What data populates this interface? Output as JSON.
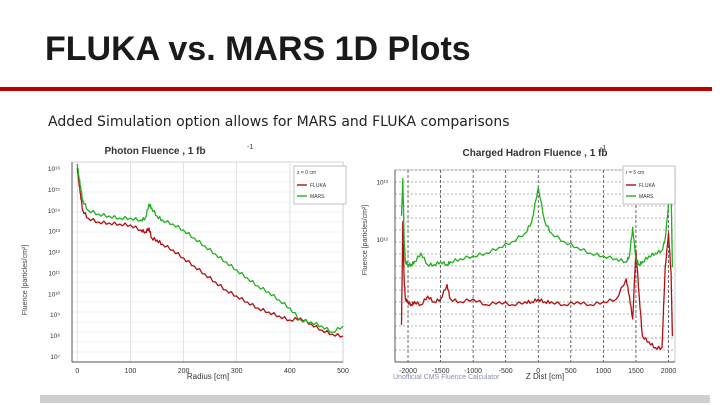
{
  "slide": {
    "title": "FLUKA vs. MARS 1D Plots",
    "subtitle": "Added Simulation option allows for MARS and FLUKA comparisons",
    "accent_color": "#c00000"
  },
  "chart_data": [
    {
      "type": "line",
      "title": "Photon Fluence , 1 fb",
      "title_superscript": "-1",
      "xlabel": "Radius [cm]",
      "ylabel": "Fluence [particles/cm²]",
      "xlim": [
        -10,
        500
      ],
      "ylog": true,
      "ylim_exp": [
        6,
        16
      ],
      "x_ticks": [
        "0",
        "100",
        "200",
        "300",
        "400",
        "500"
      ],
      "y_ticks": [
        "10¹⁶",
        "10¹⁵",
        "10¹⁴",
        "10¹³",
        "10¹²",
        "10¹¹",
        "10¹⁰",
        "10⁹",
        "10⁸",
        "10⁷"
      ],
      "grid": true,
      "legend_position": "top-right",
      "legend_header": "z = 0 cm",
      "series": [
        {
          "name": "FLUKA",
          "color": "#b01010",
          "x": [
            0,
            3,
            6,
            10,
            20,
            40,
            60,
            80,
            100,
            120,
            128,
            135,
            140,
            150,
            160,
            180,
            200,
            220,
            240,
            260,
            280,
            300,
            320,
            340,
            360,
            380,
            400,
            420,
            440,
            460,
            480,
            500
          ],
          "y": [
            15.7,
            15.0,
            14.4,
            13.6,
            13.2,
            13.0,
            12.95,
            12.9,
            12.85,
            12.6,
            12.5,
            12.7,
            12.2,
            12.1,
            11.9,
            11.6,
            11.2,
            10.8,
            10.4,
            10.0,
            9.6,
            9.3,
            9.0,
            8.7,
            8.5,
            8.3,
            8.1,
            8.2,
            7.9,
            7.6,
            7.4,
            7.3
          ]
        },
        {
          "name": "MARS",
          "color": "#20b020",
          "x": [
            0,
            3,
            6,
            10,
            20,
            40,
            60,
            80,
            100,
            120,
            128,
            135,
            140,
            150,
            160,
            180,
            200,
            220,
            240,
            260,
            280,
            300,
            320,
            340,
            360,
            380,
            400,
            420,
            440,
            460,
            480,
            500
          ],
          "y": [
            15.9,
            15.3,
            14.8,
            14.1,
            13.6,
            13.4,
            13.3,
            13.2,
            13.2,
            13.1,
            13.2,
            13.9,
            13.7,
            13.3,
            13.1,
            12.9,
            12.6,
            12.2,
            11.8,
            11.4,
            11.0,
            10.6,
            10.2,
            9.8,
            9.5,
            9.1,
            8.7,
            8.1,
            8.0,
            7.8,
            7.5,
            7.8
          ]
        }
      ]
    },
    {
      "type": "line",
      "title": "Charged Hadron Fluence , 1 fb",
      "title_superscript": "-1",
      "xlabel": "Z Dist [cm]",
      "ylabel": "Fluence [particles/cm²]",
      "xlim": [
        -2200,
        2100
      ],
      "ylog": true,
      "ylim_exp": [
        9.85,
        13.2
      ],
      "x_ticks": [
        "-2000",
        "-1500",
        "-1000",
        "-500",
        "0",
        "500",
        "1000",
        "1500",
        "2000"
      ],
      "y_ticks": [
        "10¹³",
        "10¹²"
      ],
      "grid": true,
      "legend_position": "top-right",
      "legend_header": "r = 5 cm",
      "series": [
        {
          "name": "FLUKA",
          "color": "#b01010",
          "x": [
            -2100,
            -2080,
            -2060,
            -2040,
            -2000,
            -1950,
            -1900,
            -1800,
            -1700,
            -1600,
            -1500,
            -1400,
            -1350,
            -1200,
            -1000,
            -800,
            -600,
            -400,
            -200,
            -100,
            0,
            100,
            200,
            400,
            600,
            800,
            1000,
            1200,
            1350,
            1400,
            1450,
            1500,
            1550,
            1600,
            1700,
            1800,
            1900,
            1950,
            2000,
            2040,
            2060
          ],
          "y": [
            10.5,
            12.3,
            11.3,
            10.95,
            10.9,
            10.85,
            10.9,
            10.85,
            11.0,
            10.9,
            10.95,
            11.2,
            10.95,
            10.9,
            10.95,
            10.85,
            10.9,
            10.85,
            10.9,
            10.9,
            10.95,
            10.9,
            10.9,
            10.85,
            10.9,
            10.85,
            10.9,
            10.95,
            11.3,
            11.0,
            10.6,
            11.8,
            11.0,
            10.3,
            10.2,
            10.1,
            10.1,
            11.5,
            12.1,
            11.4,
            10.3
          ]
        },
        {
          "name": "MARS",
          "color": "#20b020",
          "x": [
            -2100,
            -2080,
            -2060,
            -2040,
            -2000,
            -1950,
            -1900,
            -1800,
            -1700,
            -1600,
            -1500,
            -1400,
            -1350,
            -1200,
            -1000,
            -800,
            -600,
            -400,
            -200,
            -100,
            0,
            100,
            200,
            400,
            600,
            800,
            1000,
            1200,
            1350,
            1400,
            1450,
            1500,
            1550,
            1600,
            1700,
            1800,
            1900,
            1950,
            2000,
            2040,
            2060
          ],
          "y": [
            12.4,
            13.05,
            12.0,
            11.6,
            11.55,
            11.55,
            11.6,
            11.75,
            11.55,
            11.55,
            11.6,
            11.55,
            11.6,
            11.65,
            11.7,
            11.75,
            11.85,
            11.95,
            12.1,
            12.3,
            12.9,
            12.3,
            12.1,
            11.95,
            11.85,
            11.75,
            11.7,
            11.65,
            11.6,
            11.7,
            12.2,
            11.65,
            11.55,
            11.6,
            11.7,
            11.75,
            11.8,
            12.0,
            12.6,
            12.9,
            11.5
          ]
        }
      ]
    }
  ],
  "footer_note": "Unofficial CMS Fluence Calculator"
}
